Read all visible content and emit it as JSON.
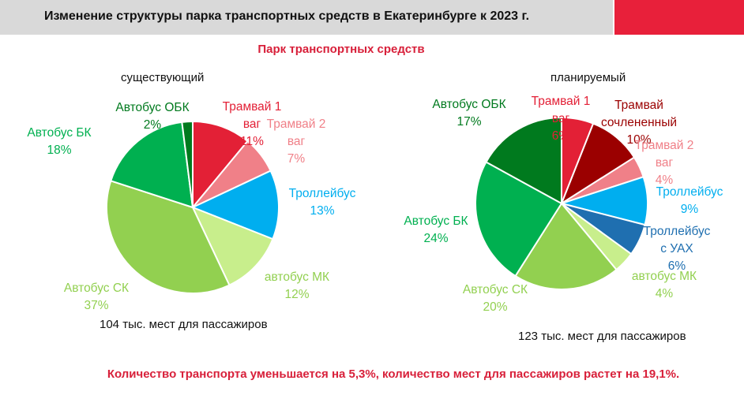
{
  "header": {
    "title": "Изменение структуры парка транспортных средств в Екатеринбурге  к 2023 г.",
    "bar_color": "#d9d9d9",
    "accent_color": "#e8203a"
  },
  "section_title": "Парк транспортных средств",
  "footer_note": "Количество транспорта уменьшается на 5,3%, количество мест для пассажиров растет на 19,1%.",
  "chart_data": [
    {
      "type": "pie",
      "title": "существующий",
      "caption": "104 тыс. мест для пассажиров",
      "slices": [
        {
          "label": "Трамвай 1 ваг",
          "value": 11,
          "display": "11%",
          "color": "#e32036",
          "text_color": "#e32036"
        },
        {
          "label": "Трамвай 2 ваг",
          "value": 7,
          "display": "7%",
          "color": "#f08088",
          "text_color": "#f08088"
        },
        {
          "label": "Троллейбус",
          "value": 13,
          "display": "13%",
          "color": "#00aeef",
          "text_color": "#00aeef"
        },
        {
          "label": "автобус МК",
          "value": 12,
          "display": "12%",
          "color": "#c8ee8c",
          "text_color": "#92d050"
        },
        {
          "label": "Автобус СК",
          "value": 37,
          "display": "37%",
          "color": "#92d050",
          "text_color": "#92d050"
        },
        {
          "label": "Автобус БК",
          "value": 18,
          "display": "18%",
          "color": "#00b050",
          "text_color": "#00b050"
        },
        {
          "label": "Автобус ОБК",
          "value": 2,
          "display": "2%",
          "color": "#007a1e",
          "text_color": "#007a1e"
        }
      ]
    },
    {
      "type": "pie",
      "title": "планируемый",
      "caption": "123 тыс. мест для пассажиров",
      "slices": [
        {
          "label": "Трамвай 1 ваг",
          "value": 6,
          "display": "6%",
          "color": "#e32036",
          "text_color": "#e32036"
        },
        {
          "label": "Трамвай сочлененный",
          "value": 10,
          "display": "10%",
          "color": "#9b0000",
          "text_color": "#9b0000"
        },
        {
          "label": "Трамвай 2 ваг",
          "value": 4,
          "display": "4%",
          "color": "#f08088",
          "text_color": "#f08088"
        },
        {
          "label": "Троллейбус",
          "value": 9,
          "display": "9%",
          "color": "#00aeef",
          "text_color": "#00aeef"
        },
        {
          "label": "Троллейбус с УАХ",
          "value": 6,
          "display": "6%",
          "color": "#1f6fb0",
          "text_color": "#1f6fb0"
        },
        {
          "label": "автобус МК",
          "value": 4,
          "display": "4%",
          "color": "#c8ee8c",
          "text_color": "#92d050"
        },
        {
          "label": "Автобус СК",
          "value": 20,
          "display": "20%",
          "color": "#92d050",
          "text_color": "#92d050"
        },
        {
          "label": "Автобус БК",
          "value": 24,
          "display": "24%",
          "color": "#00b050",
          "text_color": "#00b050"
        },
        {
          "label": "Автобус ОБК",
          "value": 17,
          "display": "17%",
          "color": "#007a1e",
          "text_color": "#007a1e"
        }
      ]
    }
  ]
}
